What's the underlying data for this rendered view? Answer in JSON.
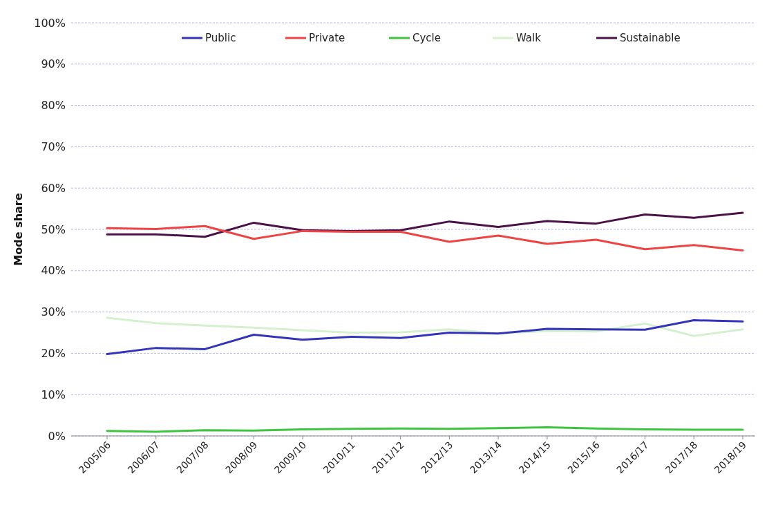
{
  "chart_data": {
    "type": "line",
    "ylabel": "Mode share",
    "categories": [
      "2005/06",
      "2006/07",
      "2007/08",
      "2008/09",
      "2009/10",
      "2010/11",
      "2011/12",
      "2012/13",
      "2013/14",
      "2014/15",
      "2015/16",
      "2016/17",
      "2017/18",
      "2018/19"
    ],
    "series": [
      {
        "name": "Public",
        "color": "#3434b8",
        "values": [
          19.8,
          21.3,
          21.0,
          24.5,
          23.3,
          24.0,
          23.7,
          25.0,
          24.8,
          25.9,
          25.8,
          25.7,
          28.0,
          27.7
        ]
      },
      {
        "name": "Private",
        "color": "#ef4444",
        "values": [
          50.3,
          50.1,
          50.8,
          47.7,
          49.6,
          49.4,
          49.4,
          47.0,
          48.5,
          46.5,
          47.5,
          45.2,
          46.2,
          44.9
        ]
      },
      {
        "name": "Cycle",
        "color": "#3ec43e",
        "values": [
          1.2,
          1.0,
          1.4,
          1.3,
          1.6,
          1.7,
          1.8,
          1.7,
          1.9,
          2.1,
          1.8,
          1.6,
          1.5,
          1.5
        ]
      },
      {
        "name": "Walk",
        "color": "#d4f0cf",
        "values": [
          28.6,
          27.3,
          26.7,
          26.2,
          25.6,
          25.0,
          25.1,
          25.8,
          24.8,
          25.4,
          25.3,
          27.2,
          24.2,
          25.8
        ]
      },
      {
        "name": "Sustainable",
        "color": "#4a1247",
        "values": [
          48.8,
          48.8,
          48.2,
          51.6,
          49.8,
          49.6,
          49.8,
          51.9,
          50.6,
          52.0,
          51.4,
          53.6,
          52.8,
          54.0
        ]
      }
    ],
    "ylim": [
      0,
      100
    ],
    "yticks": [
      {
        "value": 0,
        "label": "0%"
      },
      {
        "value": 10,
        "label": "10%"
      },
      {
        "value": 20,
        "label": "20%"
      },
      {
        "value": 30,
        "label": "30%"
      },
      {
        "value": 40,
        "label": "40%"
      },
      {
        "value": 50,
        "label": "50%"
      },
      {
        "value": 60,
        "label": "60%"
      },
      {
        "value": 70,
        "label": "70%"
      },
      {
        "value": 80,
        "label": "80%"
      },
      {
        "value": 90,
        "label": "90%"
      },
      {
        "value": 100,
        "label": "100%"
      }
    ],
    "grid": "y",
    "legend": "top",
    "marker": "none",
    "line_style": "solid"
  }
}
